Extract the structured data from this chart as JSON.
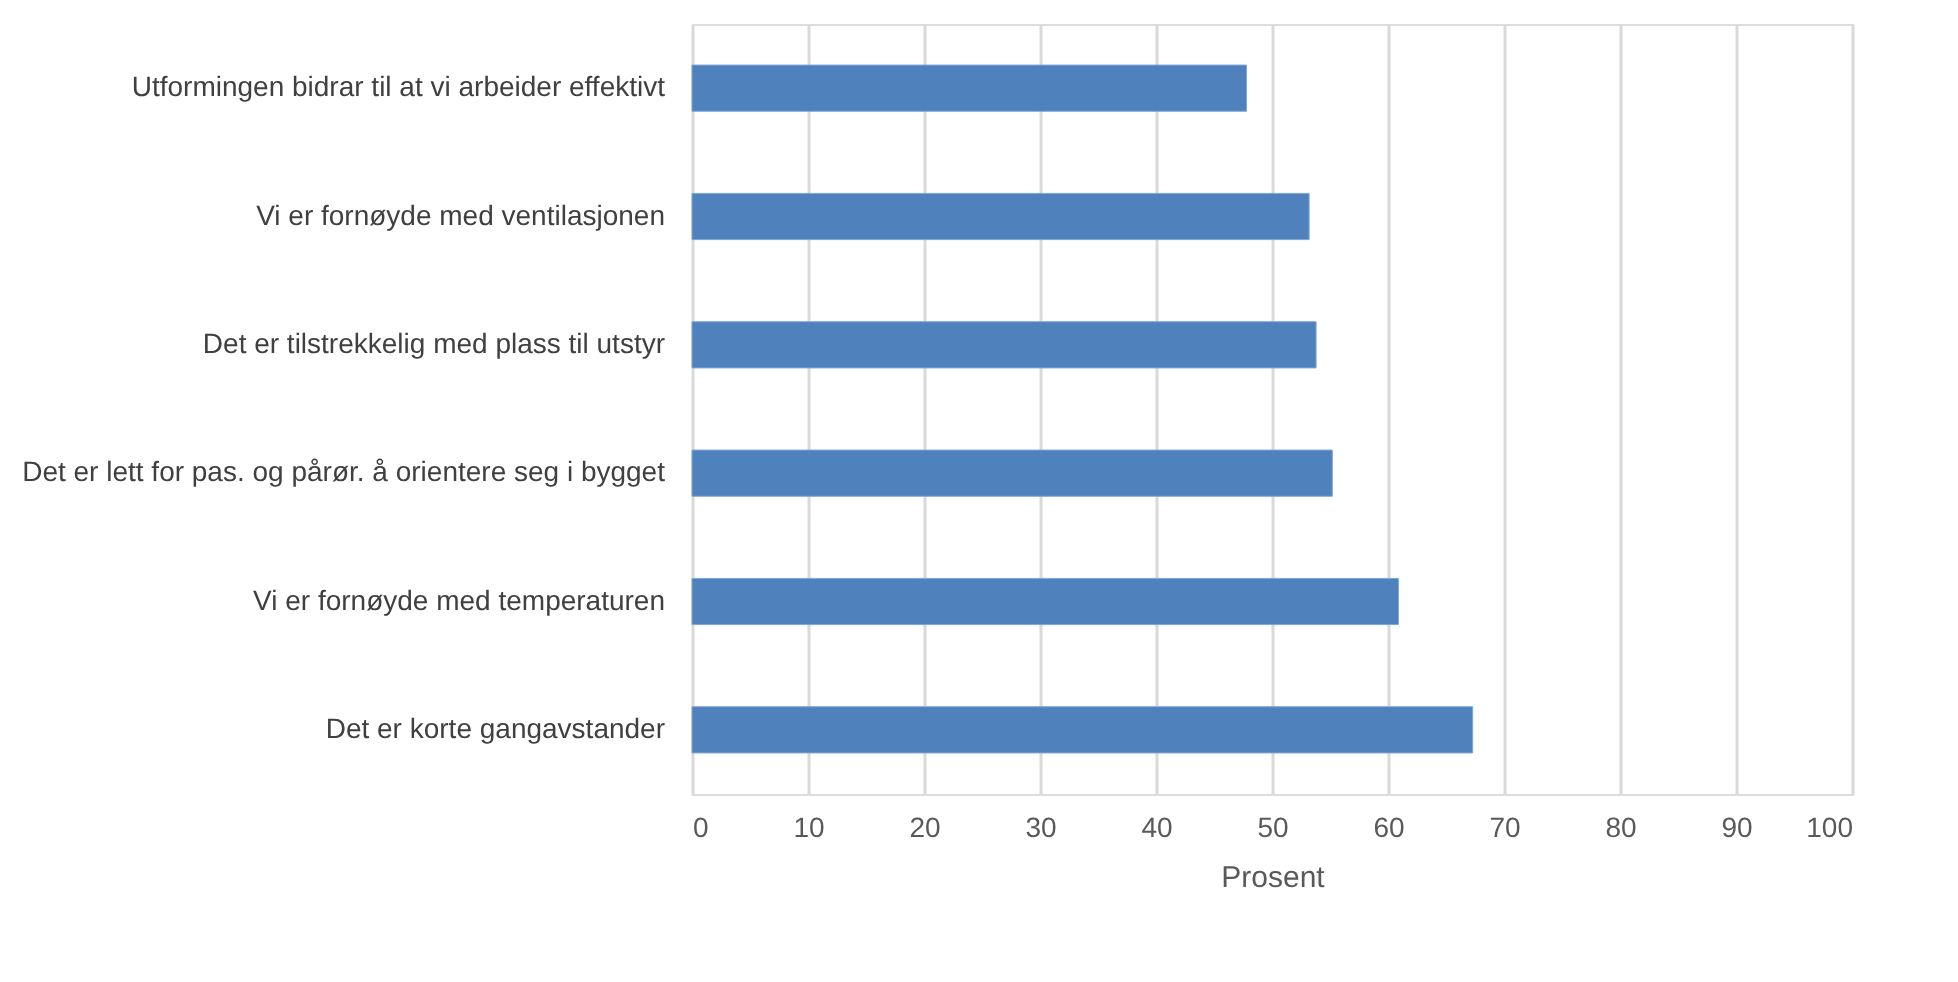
{
  "chart_data": {
    "type": "bar",
    "orientation": "horizontal",
    "xlabel": "Prosent",
    "categories": [
      "Utformingen bidrar til at vi arbeider effektivt ",
      "Vi er fornøyde med ventilasjonen",
      "Det er tilstrekkelig med plass til utstyr",
      "Det er lett for pas. og pårør. å orientere seg i bygget",
      "Vi er fornøyde med temperaturen",
      "Det er korte gangavstander"
    ],
    "values": [
      47.8,
      53.2,
      53.8,
      55.2,
      60.9,
      67.3
    ],
    "color": "#4f81bd",
    "xlim": [
      0,
      100
    ],
    "xticks": [
      0,
      10,
      20,
      30,
      40,
      50,
      60,
      70,
      80,
      90,
      100
    ],
    "grid": "x"
  }
}
